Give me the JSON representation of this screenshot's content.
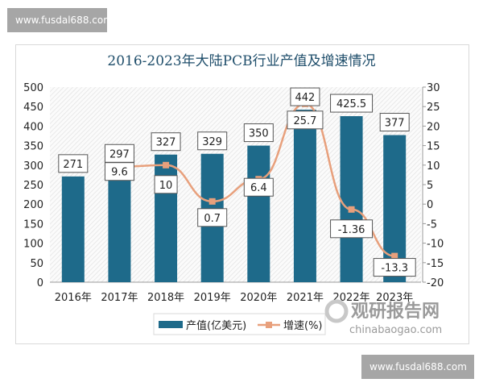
{
  "watermark_top": "www.fusdal688.com",
  "watermark_bottom": "www.fusdal688.com",
  "logo": {
    "name": "观研报告网",
    "url": "chinabaogao.com"
  },
  "chart_data": {
    "type": "bar+line",
    "title": "2016-2023年大陆PCB行业产值及增速情况",
    "categories": [
      "2016年",
      "2017年",
      "2018年",
      "2019年",
      "2020年",
      "2021年",
      "2022年",
      "2023年"
    ],
    "series": [
      {
        "name": "产值(亿美元)",
        "type": "bar",
        "axis": "left",
        "color": "#1e6a8a",
        "values": [
          271,
          297,
          327,
          329,
          350,
          442,
          425.5,
          377
        ],
        "labels": [
          "271",
          "297",
          "327",
          "329",
          "350",
          "442",
          "425.5",
          "377"
        ]
      },
      {
        "name": "增速(%)",
        "type": "line",
        "axis": "right",
        "color": "#e8a07c",
        "values": [
          null,
          9.6,
          10,
          0.7,
          6.4,
          25.7,
          -1.36,
          -13.3
        ],
        "labels": [
          "",
          "9.6",
          "10",
          "0.7",
          "6.4",
          "25.7",
          "-1.36",
          "-13.3"
        ]
      }
    ],
    "y_left": {
      "range": [
        0,
        500
      ],
      "ticks": [
        "0",
        "50",
        "100",
        "150",
        "200",
        "250",
        "300",
        "350",
        "400",
        "450",
        "500"
      ]
    },
    "y_right": {
      "range": [
        -20,
        30
      ],
      "ticks": [
        "-20",
        "-15",
        "-10",
        "-5",
        "0",
        "5",
        "10",
        "15",
        "20",
        "25",
        "30"
      ]
    },
    "legend": "bottom",
    "grid": false
  }
}
